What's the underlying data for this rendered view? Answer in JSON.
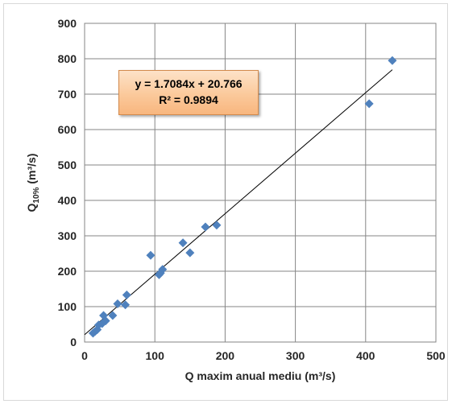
{
  "chart_data": {
    "type": "scatter",
    "x_label": "Q maxim anual mediu (m³/s)",
    "y_label_main": "Q",
    "y_label_sub": "10%",
    "y_label_unit": " (m³/s)",
    "xlim": [
      0,
      500
    ],
    "ylim": [
      0,
      900
    ],
    "x_ticks": [
      0,
      100,
      200,
      300,
      400,
      500
    ],
    "y_ticks": [
      0,
      100,
      200,
      300,
      400,
      500,
      600,
      700,
      800,
      900
    ],
    "grid": true,
    "marker_color": "#4f81bd",
    "trendline": {
      "slope": 1.7084,
      "intercept": 20.766,
      "x_range": [
        0,
        438
      ],
      "equation_text": "y = 1.7084x + 20.766",
      "r2_text": "R² = 0.9894"
    },
    "points": [
      {
        "x": 12,
        "y": 25
      },
      {
        "x": 15,
        "y": 30
      },
      {
        "x": 18,
        "y": 35
      },
      {
        "x": 20,
        "y": 48
      },
      {
        "x": 25,
        "y": 52
      },
      {
        "x": 27,
        "y": 75
      },
      {
        "x": 30,
        "y": 60
      },
      {
        "x": 40,
        "y": 75
      },
      {
        "x": 47,
        "y": 108
      },
      {
        "x": 58,
        "y": 105
      },
      {
        "x": 60,
        "y": 133
      },
      {
        "x": 94,
        "y": 245
      },
      {
        "x": 106,
        "y": 190
      },
      {
        "x": 108,
        "y": 195
      },
      {
        "x": 111,
        "y": 205
      },
      {
        "x": 140,
        "y": 280
      },
      {
        "x": 150,
        "y": 252
      },
      {
        "x": 172,
        "y": 325
      },
      {
        "x": 188,
        "y": 330
      },
      {
        "x": 405,
        "y": 673
      },
      {
        "x": 438,
        "y": 795
      }
    ]
  }
}
